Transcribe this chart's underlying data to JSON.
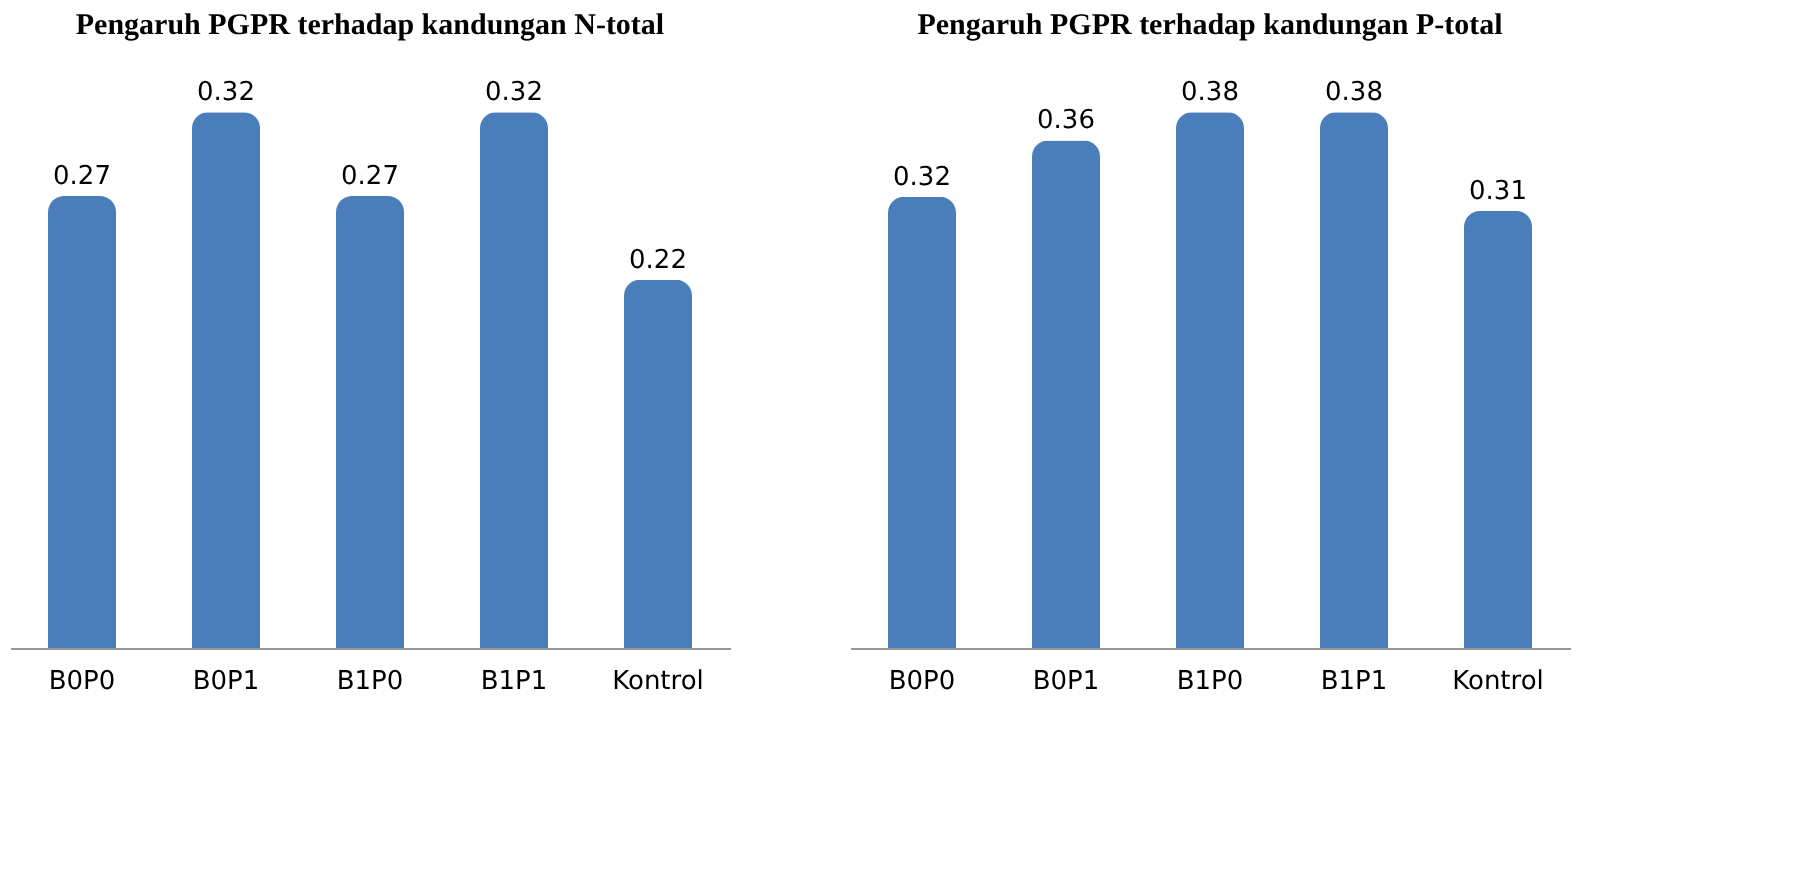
{
  "chart_data": [
    {
      "type": "bar",
      "title": "Pengaruh PGPR terhadap kandungan N-total",
      "categories": [
        "B0P0",
        "B0P1",
        "B1P0",
        "B1P1",
        "Kontrol"
      ],
      "values": [
        0.27,
        0.32,
        0.27,
        0.32,
        0.22
      ],
      "color": "#4a7ebb",
      "data_labels": true
    },
    {
      "type": "bar",
      "title": "Pengaruh PGPR terhadap kandungan P-total",
      "categories": [
        "B0P0",
        "B0P1",
        "B1P0",
        "B1P1",
        "Kontrol"
      ],
      "values": [
        0.32,
        0.36,
        0.38,
        0.38,
        0.31
      ],
      "color": "#4a7ebb",
      "data_labels": true
    }
  ]
}
